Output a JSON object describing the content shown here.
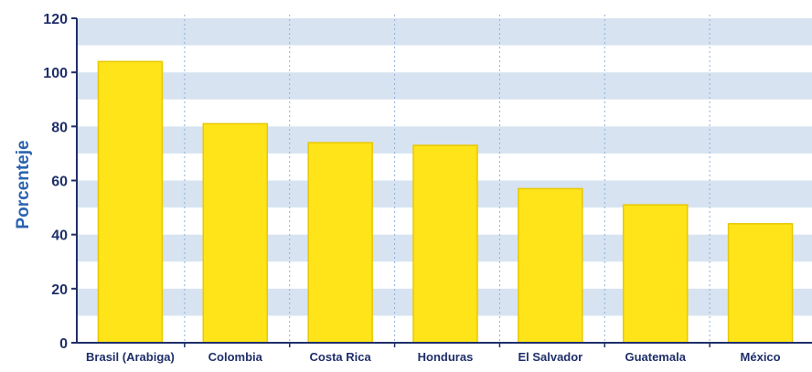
{
  "chart_data": {
    "type": "bar",
    "title": "",
    "xlabel": "",
    "ylabel": "Porcenteje",
    "categories": [
      "Brasil (Arabiga)",
      "Colombia",
      "Costa Rica",
      "Honduras",
      "El Salvador",
      "Guatemala",
      "México"
    ],
    "values": [
      104,
      81,
      74,
      73,
      57,
      51,
      44
    ],
    "ylim": [
      0,
      120
    ],
    "yticks": [
      0,
      20,
      40,
      60,
      80,
      100,
      120
    ],
    "grid": "alternating horizontal bands",
    "colors": {
      "bar_fill": "#ffe41a",
      "bar_stroke": "#e8c800",
      "band": "#d7e3f1",
      "axis": "#1f2f6b",
      "tick_text": "#1f2f6b",
      "ylabel_text": "#2b63b0",
      "divider": "#8fb0d8"
    }
  }
}
